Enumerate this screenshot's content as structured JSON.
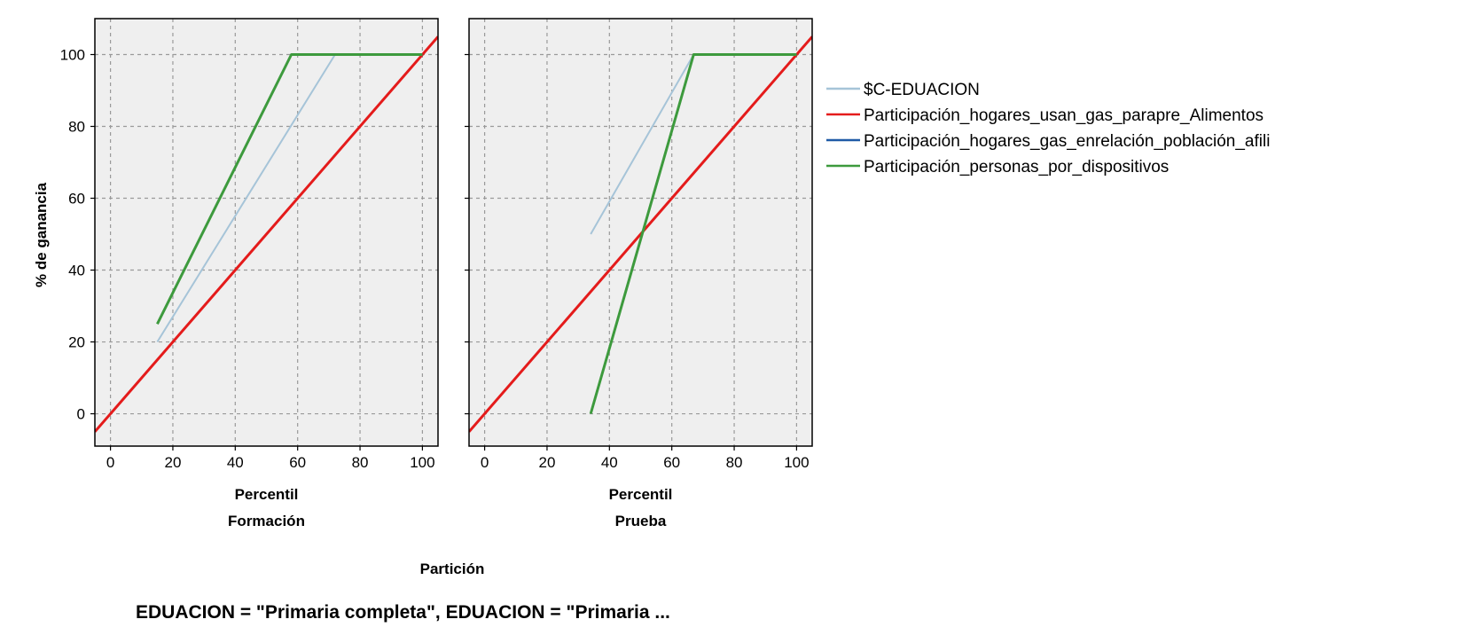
{
  "chart_data": {
    "type": "line",
    "title": "EDUACION = \"Primaria completa\", EDUACION = \"Primaria ...",
    "ylabel": "% de ganancia",
    "xlabel": "Percentil",
    "group_label": "Partición",
    "xlim": [
      -5,
      105
    ],
    "ylim": [
      -9,
      110
    ],
    "x_ticks": [
      0,
      20,
      40,
      60,
      80,
      100
    ],
    "y_ticks": [
      0,
      20,
      40,
      60,
      80,
      100
    ],
    "grid": true,
    "legend_position": "right",
    "series_styles": [
      {
        "name": "$C-EDUACION",
        "color": "#a6c4d8"
      },
      {
        "name": "Participación_hogares_usan_gas_parapre_Alimentos",
        "color": "#e41b1b"
      },
      {
        "name": "Participación_hogares_gas_enrelación_población_afili",
        "color": "#1f5aa6"
      },
      {
        "name": "Participación_personas_por_dispositivos",
        "color": "#3d9a3d"
      }
    ],
    "panels": [
      {
        "name": "Formación",
        "series": [
          {
            "name": "$C-EDUACION",
            "x": [
              15,
              72,
              100
            ],
            "y": [
              20,
              100,
              100
            ]
          },
          {
            "name": "Participación_hogares_usan_gas_parapre_Alimentos",
            "x": [
              -5,
              105
            ],
            "y": [
              -5,
              105
            ]
          },
          {
            "name": "Participación_hogares_gas_enrelación_población_afili",
            "x": [
              58,
              100
            ],
            "y": [
              100,
              100
            ]
          },
          {
            "name": "Participación_personas_por_dispositivos",
            "x": [
              15,
              58,
              100
            ],
            "y": [
              25,
              100,
              100
            ]
          }
        ]
      },
      {
        "name": "Prueba",
        "series": [
          {
            "name": "$C-EDUACION",
            "x": [
              34,
              67,
              100
            ],
            "y": [
              50,
              100,
              100
            ]
          },
          {
            "name": "Participación_hogares_usan_gas_parapre_Alimentos",
            "x": [
              -5,
              105
            ],
            "y": [
              -5,
              105
            ]
          },
          {
            "name": "Participación_hogares_gas_enrelación_población_afili",
            "x": [
              67,
              100
            ],
            "y": [
              100,
              100
            ]
          },
          {
            "name": "Participación_personas_por_dispositivos",
            "x": [
              34,
              67,
              100
            ],
            "y": [
              0,
              100,
              100
            ]
          }
        ]
      }
    ]
  }
}
